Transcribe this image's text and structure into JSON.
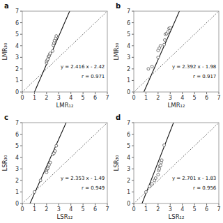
{
  "chart_data": [
    {
      "type": "scatter",
      "title": "a",
      "x_label": "LMR₁₂",
      "y_label": "LMR₃₀",
      "annotations": [
        "y = 2.416 x - 2.42",
        "r = 0.971"
      ],
      "series": [
        {
          "type": "line",
          "line_style": "dotted",
          "color": "#555555",
          "x": [
            0,
            7
          ],
          "values": [
            0,
            7
          ]
        },
        {
          "type": "line",
          "line_style": "solid",
          "color": "#111111",
          "slope": 2.416,
          "intercept": -2.42
        },
        {
          "type": "scatter",
          "marker": "circle",
          "color": "#555555",
          "x": [
            2.0,
            2.0,
            2.05,
            2.1,
            2.15,
            2.2,
            2.25,
            2.3,
            2.5,
            2.55,
            2.6,
            2.65,
            2.75,
            2.8
          ],
          "values": [
            2.5,
            2.65,
            2.75,
            2.85,
            3.05,
            3.1,
            3.25,
            3.35,
            3.55,
            4.05,
            4.25,
            4.45,
            4.65,
            4.85
          ]
        }
      ],
      "xlim": [
        0,
        7
      ],
      "ylim": [
        0,
        7
      ],
      "xticks": [
        0,
        1,
        2,
        3,
        4,
        5,
        6,
        7
      ],
      "yticks": [
        0,
        1,
        2,
        3,
        4,
        5,
        6,
        7
      ],
      "grid": false
    },
    {
      "type": "scatter",
      "title": "b",
      "x_label": "LMR₁₂",
      "y_label": "LMR₃₀",
      "annotations": [
        "y = 2.392 x - 1.98",
        "r = 0.917"
      ],
      "series": [
        {
          "type": "line",
          "line_style": "dotted",
          "color": "#555555",
          "x": [
            0,
            7
          ],
          "values": [
            0,
            7
          ]
        },
        {
          "type": "line",
          "line_style": "solid",
          "color": "#111111",
          "slope": 2.392,
          "intercept": -1.98
        },
        {
          "type": "scatter",
          "marker": "circle",
          "color": "#555555",
          "x": [
            1.2,
            1.5,
            2.0,
            2.0,
            2.1,
            2.2,
            2.5,
            2.55,
            2.6,
            2.7,
            2.8,
            2.9,
            3.0
          ],
          "values": [
            2.0,
            2.2,
            3.0,
            3.6,
            3.8,
            4.0,
            4.1,
            4.5,
            5.0,
            5.05,
            5.2,
            5.5,
            5.55
          ]
        }
      ],
      "xlim": [
        0,
        7
      ],
      "ylim": [
        0,
        7
      ],
      "xticks": [
        0,
        1,
        2,
        3,
        4,
        5,
        6,
        7
      ],
      "yticks": [
        0,
        1,
        2,
        3,
        4,
        5,
        6,
        7
      ],
      "grid": false
    },
    {
      "type": "scatter",
      "title": "c",
      "x_label": "LSR₁₂",
      "y_label": "LSR₃₀",
      "annotations": [
        "y = 2.353 x - 1.49",
        "r = 0.949"
      ],
      "series": [
        {
          "type": "line",
          "line_style": "dotted",
          "color": "#555555",
          "x": [
            0,
            7
          ],
          "values": [
            0,
            7
          ]
        },
        {
          "type": "line",
          "line_style": "solid",
          "color": "#111111",
          "slope": 2.353,
          "intercept": -1.49
        },
        {
          "type": "scatter",
          "marker": "circle",
          "color": "#555555",
          "x": [
            1.0,
            1.5,
            2.0,
            2.0,
            2.05,
            2.1,
            2.15,
            2.2,
            2.3,
            2.5,
            2.6,
            2.7,
            2.8
          ],
          "values": [
            1.0,
            2.0,
            2.7,
            2.9,
            3.0,
            3.05,
            3.25,
            3.35,
            3.55,
            4.25,
            4.35,
            4.55,
            5.0
          ]
        }
      ],
      "xlim": [
        0,
        7
      ],
      "ylim": [
        0,
        7
      ],
      "xticks": [
        0,
        1,
        2,
        3,
        4,
        5,
        6,
        7
      ],
      "yticks": [
        0,
        1,
        2,
        3,
        4,
        5,
        6,
        7
      ],
      "grid": false
    },
    {
      "type": "scatter",
      "title": "d",
      "x_label": "LSR₁₂",
      "y_label": "LSR₃₀",
      "annotations": [
        "y = 2.701 x - 1.83",
        "r = 0.956"
      ],
      "series": [
        {
          "type": "line",
          "line_style": "dotted",
          "color": "#555555",
          "x": [
            0,
            7
          ],
          "values": [
            0,
            7
          ]
        },
        {
          "type": "line",
          "line_style": "solid",
          "color": "#111111",
          "slope": 2.701,
          "intercept": -1.83
        },
        {
          "type": "scatter",
          "marker": "circle",
          "color": "#555555",
          "x": [
            1.0,
            1.3,
            1.5,
            1.7,
            1.8,
            2.0,
            2.05,
            2.1,
            2.15,
            2.2,
            2.25,
            2.3,
            2.5
          ],
          "values": [
            1.0,
            1.5,
            1.7,
            2.0,
            2.2,
            2.5,
            2.85,
            3.0,
            3.25,
            3.3,
            3.55,
            3.75,
            5.05
          ]
        }
      ],
      "xlim": [
        0,
        7
      ],
      "ylim": [
        0,
        7
      ],
      "xticks": [
        0,
        1,
        2,
        3,
        4,
        5,
        6,
        7
      ],
      "yticks": [
        0,
        1,
        2,
        3,
        4,
        5,
        6,
        7
      ],
      "grid": false
    }
  ]
}
